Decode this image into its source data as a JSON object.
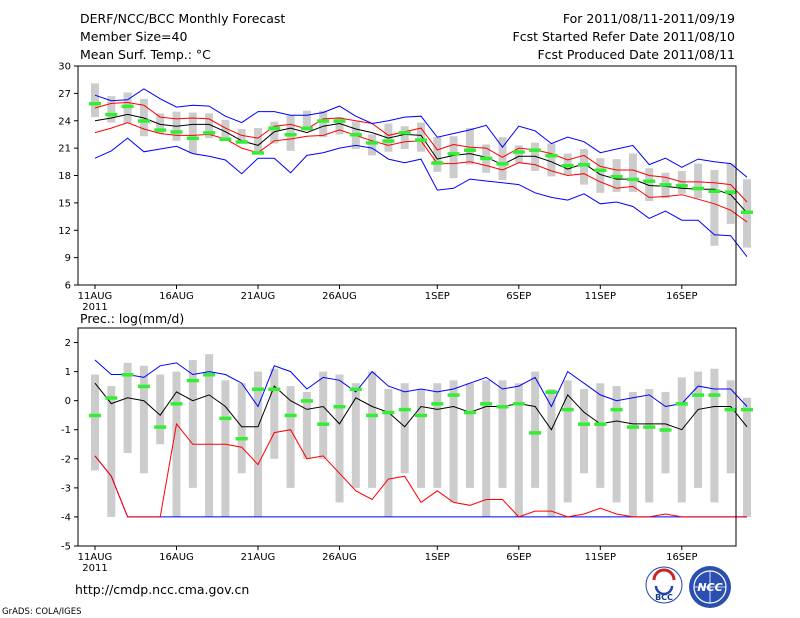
{
  "header": {
    "title": "DERF/NCC/BCC Monthly Forecast",
    "member_size": "Member Size=40",
    "variable": "Mean Surf. Temp.: °C",
    "forecast_period": "For 2011/08/11-2011/09/19",
    "started_date": "Fcst Started Refer Date 2011/08/10",
    "produced_date": "Fcst Produced Date 2011/08/11"
  },
  "footer": {
    "url": "http://cmdp.ncc.cma.gov.cn",
    "credit": "GrADS: COLA/IGES",
    "logo_bcc": "BCC",
    "logo_ncc": "NCC"
  },
  "colors": {
    "mean": "#000000",
    "spread": "#ff0000",
    "range": "#0000ff",
    "box": "#cccccc",
    "marker": "#33ee33"
  },
  "chart_data": [
    {
      "type": "box-line",
      "title": "Mean Surf. Temp.: °C",
      "ylim": [
        6,
        30
      ],
      "yticks": [
        6,
        9,
        12,
        15,
        18,
        21,
        24,
        27,
        30
      ],
      "x_ticks": [
        {
          "day": 0,
          "label": "11AUG"
        },
        {
          "day": 5,
          "label": "16AUG"
        },
        {
          "day": 10,
          "label": "21AUG"
        },
        {
          "day": 15,
          "label": "26AUG"
        },
        {
          "day": 21,
          "label": "1SEP"
        },
        {
          "day": 26,
          "label": "6SEP"
        },
        {
          "day": 31,
          "label": "11SEP"
        },
        {
          "day": 36,
          "label": "16SEP"
        }
      ],
      "year_label": "2011",
      "series": [
        {
          "name": "mean",
          "values": [
            24.0,
            24.3,
            24.7,
            24.3,
            23.6,
            23.4,
            23.6,
            23.6,
            22.8,
            21.8,
            21.3,
            22.8,
            23.2,
            22.7,
            23.4,
            23.7,
            23.1,
            22.7,
            22.1,
            22.5,
            22.4,
            19.8,
            20.2,
            20.4,
            20.0,
            19.2,
            20.1,
            20.1,
            19.5,
            18.7,
            19.3,
            18.1,
            17.6,
            17.6,
            16.9,
            16.8,
            16.6,
            16.5,
            16.5,
            15.9,
            13.9
          ]
        },
        {
          "name": "upper",
          "values": [
            25.4,
            25.9,
            26.0,
            25.7,
            24.4,
            24.2,
            24.3,
            24.2,
            23.2,
            22.4,
            22.1,
            23.4,
            23.6,
            23.1,
            24.2,
            24.3,
            24.0,
            23.7,
            22.4,
            22.8,
            23.2,
            20.8,
            21.4,
            21.1,
            21.0,
            20.0,
            21.0,
            20.8,
            20.4,
            19.7,
            20.2,
            19.0,
            18.6,
            18.6,
            18.0,
            17.8,
            17.3,
            17.3,
            17.2,
            17.0,
            15.1
          ]
        },
        {
          "name": "lower",
          "values": [
            22.7,
            23.2,
            23.8,
            23.1,
            22.6,
            22.4,
            22.4,
            22.5,
            22.0,
            21.0,
            20.5,
            21.8,
            22.0,
            22.3,
            22.4,
            23.0,
            22.4,
            21.8,
            21.3,
            21.7,
            21.8,
            19.3,
            19.3,
            19.5,
            19.1,
            18.6,
            19.4,
            19.2,
            18.5,
            18.0,
            18.2,
            17.3,
            16.6,
            16.8,
            15.6,
            15.7,
            15.9,
            15.4,
            14.9,
            14.2,
            12.9
          ]
        },
        {
          "name": "max",
          "values": [
            26.8,
            26.2,
            26.3,
            27.5,
            26.4,
            25.5,
            25.7,
            25.6,
            24.5,
            23.8,
            25.0,
            25.0,
            24.6,
            24.6,
            24.9,
            25.6,
            24.5,
            23.7,
            24.0,
            24.4,
            24.5,
            22.2,
            22.6,
            23.0,
            23.5,
            21.1,
            23.4,
            22.9,
            21.5,
            22.2,
            21.7,
            20.5,
            20.9,
            21.3,
            19.2,
            19.9,
            18.9,
            19.8,
            19.5,
            19.3,
            17.8
          ]
        },
        {
          "name": "min",
          "values": [
            19.9,
            20.7,
            22.1,
            20.6,
            20.9,
            21.2,
            20.4,
            20.1,
            19.7,
            18.2,
            19.9,
            19.9,
            18.3,
            20.2,
            20.5,
            21.0,
            21.3,
            21.0,
            19.8,
            19.4,
            19.8,
            16.4,
            16.6,
            17.6,
            17.4,
            17.2,
            17.0,
            16.1,
            15.6,
            15.3,
            16.0,
            14.9,
            15.1,
            14.6,
            13.3,
            14.1,
            13.1,
            13.1,
            11.5,
            11.4,
            9.1
          ]
        }
      ],
      "boxes": {
        "low": [
          24.4,
          23.8,
          23.7,
          22.3,
          22.6,
          21.8,
          20.4,
          22.1,
          21.9,
          21.5,
          20.6,
          21.5,
          20.7,
          22.9,
          22.2,
          22.5,
          20.9,
          20.2,
          20.6,
          20.9,
          20.6,
          18.4,
          17.7,
          19.2,
          18.3,
          17.5,
          19.4,
          18.5,
          17.9,
          18.1,
          17.0,
          16.1,
          16.2,
          16.2,
          15.2,
          15.5,
          16.0,
          15.5,
          10.3,
          12.7,
          10.1
        ],
        "high": [
          28.1,
          26.7,
          27.1,
          26.4,
          24.8,
          25.0,
          24.9,
          24.8,
          24.1,
          23.1,
          23.2,
          23.9,
          24.6,
          25.1,
          25.1,
          24.4,
          23.9,
          22.5,
          23.7,
          23.4,
          23.8,
          22.2,
          22.3,
          23.2,
          21.4,
          22.2,
          21.3,
          21.6,
          21.5,
          20.4,
          20.9,
          19.9,
          19.8,
          20.4,
          18.8,
          18.3,
          18.5,
          19.3,
          18.6,
          19.3,
          17.6
        ]
      },
      "markers": [
        25.9,
        24.7,
        25.6,
        24.0,
        23.0,
        22.8,
        22.1,
        22.7,
        22.0,
        21.7,
        20.5,
        23.2,
        22.5,
        23.2,
        24.0,
        24.0,
        22.5,
        21.6,
        21.8,
        22.7,
        21.9,
        19.4,
        20.4,
        20.8,
        19.9,
        19.3,
        20.6,
        20.8,
        20.2,
        19.1,
        19.2,
        18.6,
        17.9,
        17.6,
        17.4,
        17.0,
        16.9,
        16.6,
        16.3,
        16.2,
        14.0
      ]
    },
    {
      "type": "box-line",
      "title": "Prec.: log(mm/d)",
      "ylim": [
        -5,
        2.5
      ],
      "yticks": [
        -5,
        -4,
        -3,
        -2,
        -1,
        0,
        1,
        2
      ],
      "x_ticks": [
        {
          "day": 0,
          "label": "11AUG"
        },
        {
          "day": 5,
          "label": "16AUG"
        },
        {
          "day": 10,
          "label": "21AUG"
        },
        {
          "day": 15,
          "label": "26AUG"
        },
        {
          "day": 21,
          "label": "1SEP"
        },
        {
          "day": 26,
          "label": "6SEP"
        },
        {
          "day": 31,
          "label": "11SEP"
        },
        {
          "day": 36,
          "label": "16SEP"
        }
      ],
      "year_label": "2011",
      "series": [
        {
          "name": "max",
          "values": [
            1.4,
            0.9,
            0.9,
            0.8,
            1.2,
            1.3,
            0.9,
            1.0,
            0.9,
            0.6,
            -0.2,
            1.2,
            1.0,
            0.4,
            0.8,
            0.7,
            0.3,
            1.0,
            0.5,
            0.3,
            0.4,
            0.3,
            0.4,
            0.6,
            0.8,
            0.4,
            0.5,
            0.8,
            -0.2,
            1.0,
            0.6,
            0.2,
            0.0,
            0.1,
            0.2,
            -0.2,
            -0.1,
            0.5,
            0.4,
            0.4,
            -0.2
          ]
        },
        {
          "name": "mean",
          "values": [
            0.6,
            -0.1,
            0.1,
            0.0,
            -0.5,
            0.3,
            0.0,
            0.2,
            -0.2,
            -0.9,
            -0.9,
            0.5,
            0.0,
            -0.3,
            -0.2,
            -0.8,
            0.1,
            -0.2,
            -0.4,
            -0.9,
            -0.2,
            -0.3,
            -0.2,
            -0.4,
            -0.2,
            -0.2,
            -0.1,
            -0.2,
            -1.0,
            0.2,
            -0.4,
            -0.8,
            -0.7,
            -0.8,
            -0.8,
            -0.8,
            -1.0,
            -0.3,
            -0.2,
            -0.2,
            -0.9
          ]
        },
        {
          "name": "min",
          "values": [
            -1.9,
            -2.6,
            -4.0,
            -4.0,
            -4.0,
            -4.0,
            -4.0,
            -4.0,
            -4.0,
            -4.0,
            -4.0,
            -4.0,
            -4.0,
            -4.0,
            -4.0,
            -4.0,
            -4.0,
            -4.0,
            -4.0,
            -4.0,
            -4.0,
            -4.0,
            -4.0,
            -4.0,
            -4.0,
            -4.0,
            -4.0,
            -4.0,
            -4.0,
            -4.0,
            -4.0,
            -4.0,
            -4.0,
            -4.0,
            -4.0,
            -4.0,
            -4.0,
            -4.0,
            -4.0,
            -4.0,
            -4.0
          ]
        },
        {
          "name": "lower",
          "values": [
            -1.9,
            -2.6,
            -4.0,
            -4.0,
            -4.0,
            -0.8,
            -1.5,
            -1.5,
            -1.5,
            -1.6,
            -2.2,
            -1.1,
            -1.0,
            -2.0,
            -1.9,
            -2.5,
            -3.1,
            -3.4,
            -2.7,
            -2.6,
            -3.5,
            -3.1,
            -3.5,
            -3.6,
            -3.4,
            -3.4,
            -4.0,
            -3.8,
            -3.8,
            -4.0,
            -3.9,
            -3.7,
            -3.9,
            -4.0,
            -4.0,
            -3.9,
            -4.0,
            -4.0,
            -4.0,
            -4.0,
            -4.0
          ]
        }
      ],
      "boxes": {
        "low": [
          -2.4,
          -4.0,
          -1.8,
          -2.5,
          -1.5,
          -4.0,
          -3.0,
          -4.0,
          -4.0,
          -2.5,
          -4.0,
          -2.0,
          -3.0,
          -2.0,
          -2.0,
          -3.5,
          -3.0,
          -3.0,
          -4.0,
          -2.5,
          -3.0,
          -3.0,
          -3.5,
          -3.0,
          -4.0,
          -3.0,
          -4.0,
          -3.0,
          -4.0,
          -3.5,
          -2.5,
          -3.0,
          -3.5,
          -4.0,
          -3.5,
          -2.5,
          -3.5,
          -3.0,
          -3.5,
          -2.5,
          -4.0
        ],
        "high": [
          0.9,
          0.5,
          1.3,
          1.2,
          0.9,
          1.0,
          1.4,
          1.6,
          0.7,
          0.6,
          1.0,
          1.1,
          0.5,
          0.3,
          1.0,
          0.9,
          0.6,
          1.0,
          0.4,
          0.6,
          0.4,
          0.6,
          0.7,
          0.6,
          0.7,
          0.7,
          0.6,
          1.0,
          0.4,
          0.7,
          0.4,
          0.6,
          0.5,
          0.3,
          0.4,
          0.3,
          0.8,
          1.0,
          1.1,
          0.7,
          0.1
        ]
      },
      "markers": [
        -0.5,
        0.1,
        0.9,
        0.5,
        -0.9,
        -0.1,
        0.7,
        0.9,
        -0.6,
        -1.3,
        0.4,
        0.4,
        -0.5,
        0.0,
        -0.8,
        -0.2,
        0.4,
        -0.5,
        -0.4,
        -0.3,
        -0.5,
        -0.1,
        0.2,
        -0.4,
        -0.1,
        -0.2,
        -0.1,
        -1.1,
        0.3,
        -0.3,
        -0.8,
        -0.8,
        -0.3,
        -0.9,
        -0.9,
        -1.0,
        -0.1,
        0.2,
        0.2,
        -0.3,
        -0.3
      ]
    }
  ]
}
